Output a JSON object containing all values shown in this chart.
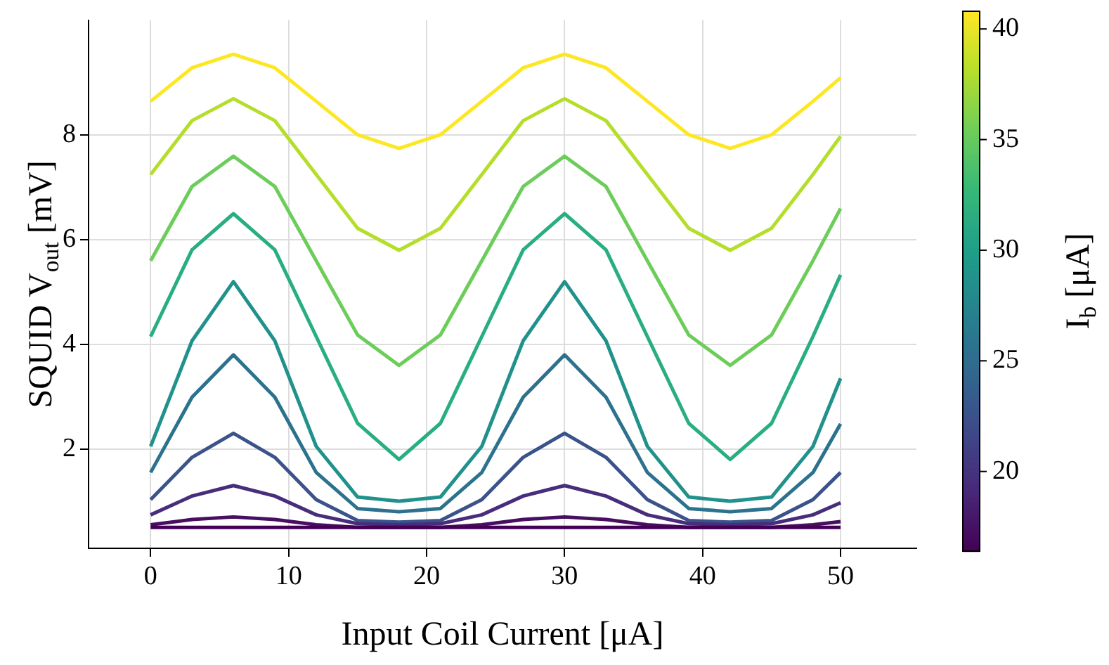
{
  "chart_data": {
    "type": "line",
    "xlabel": "Input Coil Current [μA]",
    "ylabel": "SQUID V$_{out}$ [mV]",
    "clabel": "I$_{b}$ [μA]",
    "x": [
      0,
      3,
      6,
      9,
      12,
      15,
      18,
      21,
      24,
      27,
      30,
      33,
      36,
      39,
      42,
      45,
      48,
      50
    ],
    "xlim": [
      -4.5,
      55.5
    ],
    "xticks": [
      0,
      10,
      20,
      30,
      40,
      50
    ],
    "ylim": [
      0.1,
      10.2
    ],
    "yticks": [
      2,
      4,
      6,
      8
    ],
    "clim": [
      16.4,
      40.8
    ],
    "cticks": [
      20,
      25,
      30,
      35,
      40
    ],
    "grid": true,
    "legend": false,
    "marker": "none",
    "line_style": "solid",
    "series": [
      {
        "color": "#440154",
        "values": [
          0.5,
          0.5,
          0.5,
          0.5,
          0.5,
          0.5,
          0.5,
          0.5,
          0.5,
          0.5,
          0.5,
          0.5,
          0.5,
          0.5,
          0.5,
          0.5,
          0.5,
          0.5
        ]
      },
      {
        "color": "#470e61",
        "values": [
          0.55,
          0.65,
          0.7,
          0.65,
          0.55,
          0.5,
          0.5,
          0.5,
          0.55,
          0.65,
          0.7,
          0.65,
          0.55,
          0.5,
          0.5,
          0.5,
          0.55,
          0.61
        ]
      },
      {
        "color": "#472d7b",
        "values": [
          0.74,
          1.1,
          1.3,
          1.1,
          0.74,
          0.57,
          0.55,
          0.57,
          0.74,
          1.1,
          1.3,
          1.1,
          0.74,
          0.57,
          0.55,
          0.57,
          0.74,
          0.97
        ]
      },
      {
        "color": "#3b528b",
        "values": [
          1.03,
          1.84,
          2.3,
          1.84,
          1.03,
          0.63,
          0.6,
          0.63,
          1.03,
          1.84,
          2.3,
          1.84,
          1.03,
          0.63,
          0.6,
          0.63,
          1.03,
          1.55
        ]
      },
      {
        "color": "#2c728e",
        "values": [
          1.55,
          2.99,
          3.8,
          2.99,
          1.55,
          0.86,
          0.8,
          0.86,
          1.55,
          2.99,
          3.8,
          2.99,
          1.55,
          0.86,
          0.8,
          0.86,
          1.55,
          2.48
        ]
      },
      {
        "color": "#21918c",
        "values": [
          2.05,
          4.07,
          5.2,
          4.07,
          2.05,
          1.08,
          1.0,
          1.08,
          2.05,
          4.07,
          5.2,
          4.07,
          2.05,
          1.08,
          1.0,
          1.08,
          2.05,
          3.35
        ]
      },
      {
        "color": "#28ae80",
        "values": [
          4.15,
          5.81,
          6.5,
          5.81,
          4.15,
          2.49,
          1.8,
          2.49,
          4.15,
          5.81,
          6.5,
          5.81,
          4.15,
          2.49,
          1.8,
          2.49,
          4.15,
          5.33
        ]
      },
      {
        "color": "#6ccd5a",
        "values": [
          5.6,
          7.02,
          7.6,
          7.02,
          5.6,
          4.18,
          3.6,
          4.18,
          5.6,
          7.02,
          7.6,
          7.02,
          5.6,
          4.18,
          3.6,
          4.18,
          5.6,
          6.6
        ]
      },
      {
        "color": "#b5de2b",
        "values": [
          7.25,
          8.28,
          8.7,
          8.28,
          7.25,
          6.22,
          5.8,
          6.22,
          7.25,
          8.28,
          8.7,
          8.28,
          7.25,
          6.22,
          5.8,
          6.22,
          7.25,
          7.98
        ]
      },
      {
        "color": "#fde725",
        "values": [
          8.65,
          9.29,
          9.55,
          9.29,
          8.65,
          8.01,
          7.75,
          8.01,
          8.65,
          9.29,
          9.55,
          9.29,
          8.65,
          8.01,
          7.75,
          8.01,
          8.65,
          9.1
        ]
      }
    ]
  }
}
